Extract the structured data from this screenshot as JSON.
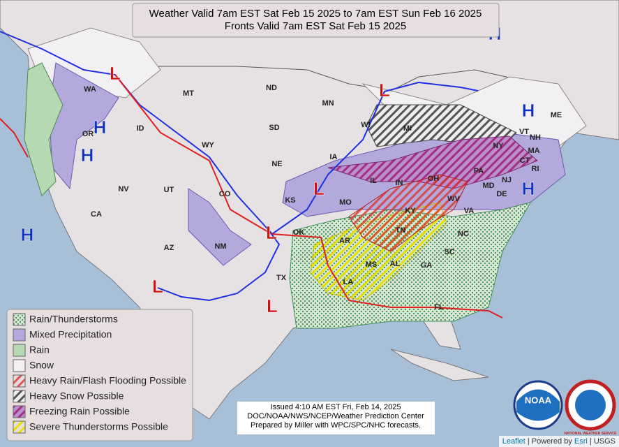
{
  "header": {
    "title": [
      "Weather Valid 7am EST Sat Feb 15 2025 to 7am EST Sun Feb 16 2025",
      "Fronts Valid 7am EST Sat Feb 15 2025"
    ]
  },
  "states": [
    "WA",
    "MT",
    "ND",
    "MN",
    "OR",
    "ID",
    "SD",
    "WI",
    "MI",
    "WY",
    "NE",
    "IA",
    "NV",
    "UT",
    "CO",
    "IL",
    "IN",
    "OH",
    "PA",
    "NY",
    "VT",
    "NH",
    "ME",
    "MA",
    "CT",
    "RI",
    "NJ",
    "DE",
    "MD",
    "WV",
    "VA",
    "KS",
    "MO",
    "KY",
    "CA",
    "AZ",
    "NM",
    "OK",
    "AR",
    "TN",
    "NC",
    "SC",
    "MS",
    "AL",
    "GA",
    "TX",
    "LA",
    "FL"
  ],
  "pressure_centers": [
    "L",
    "L",
    "H",
    "H",
    "H",
    "H",
    "L",
    "L",
    "L",
    "L",
    "H",
    "H"
  ],
  "legend": {
    "items": [
      "Rain/Thunderstorms",
      "Mixed Precipitation",
      "Rain",
      "Snow",
      "Heavy Rain/Flash Flooding Possible",
      "Heavy Snow Possible",
      "Freezing Rain Possible",
      "Severe Thunderstorms Possible"
    ]
  },
  "issued": [
    "Issued  4:10 AM EST Fri, Feb 14, 2025",
    "DOC/NOAA/NWS/NCEP/Weather Prediction Center",
    "Prepared by Miller with WPC/SPC/NHC forecasts."
  ],
  "logos": {
    "noaa": "NOAA",
    "nws": "NATIONAL WEATHER SERVICE"
  },
  "attribution": [
    "Leaflet",
    " | Powered by ",
    "Esri",
    " | USGS"
  ]
}
